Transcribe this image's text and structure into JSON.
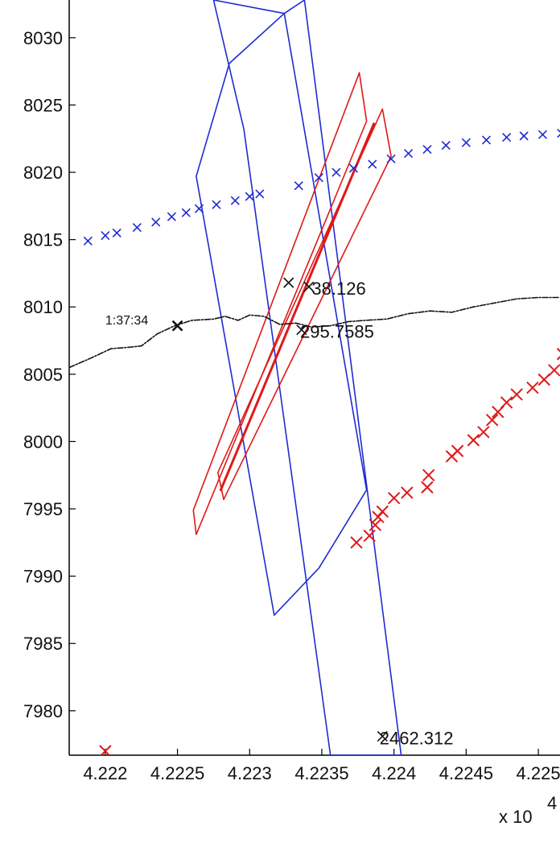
{
  "chart_data": {
    "type": "line",
    "title": "",
    "xlabel": "",
    "ylabel": "",
    "xlim": [
      42217.5,
      42251.5
    ],
    "ylim": [
      7976.7,
      8032.8
    ],
    "x_exponent_label": "x 10",
    "x_exponent_power": "4",
    "x_ticks": [
      42220,
      42225,
      42230,
      42235,
      42240,
      42245,
      42250
    ],
    "x_tick_labels": [
      "4.222",
      "4.2225",
      "4.223",
      "4.2235",
      "4.224",
      "4.2245",
      "4.225"
    ],
    "y_ticks": [
      7980,
      7985,
      7990,
      7995,
      8000,
      8005,
      8010,
      8015,
      8020,
      8025,
      8030
    ],
    "y_tick_labels": [
      "7980",
      "7985",
      "7990",
      "7995",
      "8000",
      "8005",
      "8010",
      "8015",
      "8020",
      "8025",
      "8030"
    ],
    "grid": false,
    "colors": {
      "blue": "#1f2bd0",
      "red": "#e01818",
      "black": "#111111"
    },
    "series": [
      {
        "kind": "polygon",
        "color": "blue",
        "points": [
          [
            42227.5,
            8032.8
          ],
          [
            42232.4,
            8031.8
          ],
          [
            42233.8,
            8032.8
          ],
          [
            42240.5,
            7976.7
          ],
          [
            42235.6,
            7976.7
          ],
          [
            42229.6,
            8023.2
          ]
        ]
      },
      {
        "kind": "polygon",
        "color": "blue",
        "points": [
          [
            42226.3,
            8019.7
          ],
          [
            42228.6,
            8028.1
          ],
          [
            42232.4,
            8031.8
          ],
          [
            42238.1,
            7996.4
          ],
          [
            42234.8,
            7990.6
          ],
          [
            42231.7,
            7987.1
          ]
        ]
      },
      {
        "kind": "polygon",
        "color": "red",
        "points": [
          [
            42226.1,
            7994.9
          ],
          [
            42237.6,
            8027.4
          ],
          [
            42238.1,
            8023.8
          ],
          [
            42226.3,
            7993.1
          ]
        ]
      },
      {
        "kind": "polygon",
        "color": "red",
        "points": [
          [
            42227.8,
            7997.7
          ],
          [
            42239.2,
            8024.7
          ],
          [
            42239.8,
            8021.2
          ],
          [
            42228.2,
            7995.7
          ]
        ]
      },
      {
        "kind": "line",
        "color": "red",
        "width": 3,
        "points": [
          [
            42228.0,
            7996.4
          ],
          [
            42238.6,
            8023.6
          ]
        ]
      },
      {
        "kind": "line",
        "color": "black",
        "dash": "dashdot",
        "points": [
          [
            42217.5,
            8005.5
          ],
          [
            42219.0,
            8006.2
          ],
          [
            42220.4,
            8006.9
          ],
          [
            42221.6,
            8007.0
          ],
          [
            42222.5,
            8007.1
          ],
          [
            42223.6,
            8008.0
          ],
          [
            42224.8,
            8008.6
          ],
          [
            42226.0,
            8009.0
          ],
          [
            42227.5,
            8009.1
          ],
          [
            42228.3,
            8009.3
          ],
          [
            42229.2,
            8009.0
          ],
          [
            42230.0,
            8009.4
          ],
          [
            42231.0,
            8009.3
          ],
          [
            42232.1,
            8008.7
          ],
          [
            42233.2,
            8008.8
          ],
          [
            42234.3,
            8008.5
          ],
          [
            42235.6,
            8008.6
          ],
          [
            42236.8,
            8008.9
          ],
          [
            42238.0,
            8009.0
          ],
          [
            42239.5,
            8009.1
          ],
          [
            42241.0,
            8009.5
          ],
          [
            42242.5,
            8009.7
          ],
          [
            42244.0,
            8009.6
          ],
          [
            42245.5,
            8010.0
          ],
          [
            42247.0,
            8010.3
          ],
          [
            42248.5,
            8010.6
          ],
          [
            42250.0,
            8010.7
          ],
          [
            42251.5,
            8010.7
          ]
        ]
      },
      {
        "kind": "scatter",
        "color": "blue",
        "size": 5,
        "width": 1.6,
        "points": [
          [
            42218.8,
            8014.9
          ],
          [
            42220.0,
            8015.3
          ],
          [
            42220.8,
            8015.5
          ],
          [
            42222.2,
            8015.9
          ],
          [
            42223.5,
            8016.3
          ],
          [
            42224.6,
            8016.7
          ],
          [
            42225.6,
            8017.0
          ],
          [
            42226.5,
            8017.3
          ],
          [
            42227.7,
            8017.6
          ],
          [
            42229.0,
            8017.9
          ],
          [
            42230.0,
            8018.2
          ],
          [
            42230.7,
            8018.4
          ],
          [
            42233.4,
            8019.0
          ],
          [
            42234.8,
            8019.6
          ],
          [
            42236.0,
            8020.0
          ],
          [
            42237.2,
            8020.3
          ],
          [
            42238.5,
            8020.6
          ],
          [
            42239.8,
            8021.0
          ],
          [
            42241.0,
            8021.4
          ],
          [
            42242.3,
            8021.7
          ],
          [
            42243.6,
            8022.0
          ],
          [
            42245.0,
            8022.2
          ],
          [
            42246.4,
            8022.4
          ],
          [
            42247.8,
            8022.6
          ],
          [
            42249.0,
            8022.7
          ],
          [
            42250.3,
            8022.8
          ],
          [
            42251.6,
            8022.9
          ]
        ]
      },
      {
        "kind": "scatter",
        "color": "red",
        "size": 7,
        "width": 2,
        "points": [
          [
            42237.4,
            7992.5
          ],
          [
            42238.3,
            7993.0
          ],
          [
            42238.7,
            7993.8
          ],
          [
            42238.9,
            7994.4
          ],
          [
            42239.2,
            7994.8
          ],
          [
            42240.0,
            7995.8
          ],
          [
            42240.9,
            7996.2
          ],
          [
            42242.3,
            7996.6
          ],
          [
            42242.4,
            7997.5
          ],
          [
            42244.0,
            7998.9
          ],
          [
            42244.4,
            7999.3
          ],
          [
            42245.5,
            8000.1
          ],
          [
            42246.2,
            8000.7
          ],
          [
            42246.8,
            8001.6
          ],
          [
            42247.2,
            8002.2
          ],
          [
            42247.8,
            8002.9
          ],
          [
            42248.5,
            8003.5
          ],
          [
            42249.6,
            8004.0
          ],
          [
            42250.4,
            8004.6
          ],
          [
            42251.1,
            8005.3
          ],
          [
            42251.7,
            8006.5
          ],
          [
            42220.0,
            7977.0
          ]
        ]
      },
      {
        "kind": "scatter",
        "color": "black",
        "size": 6,
        "width": 1.6,
        "points": [
          [
            42232.7,
            8011.8
          ],
          [
            42234.1,
            8011.5
          ],
          [
            42233.6,
            8008.3
          ],
          [
            42239.2,
            7978.1
          ]
        ]
      },
      {
        "kind": "scatter",
        "color": "black",
        "size": 6,
        "width": 2.6,
        "points": [
          [
            42225.0,
            8008.6
          ]
        ]
      }
    ],
    "annotations": [
      {
        "x": 42234.3,
        "y": 8011.4,
        "text": "38.126",
        "size": "large"
      },
      {
        "x": 42233.5,
        "y": 8008.2,
        "text": "295.7585",
        "size": "large"
      },
      {
        "x": 42239.0,
        "y": 7978.0,
        "text": "2462.312",
        "size": "large"
      },
      {
        "x": 42220.0,
        "y": 8009.0,
        "text": "1:37:34",
        "size": "small"
      }
    ]
  }
}
